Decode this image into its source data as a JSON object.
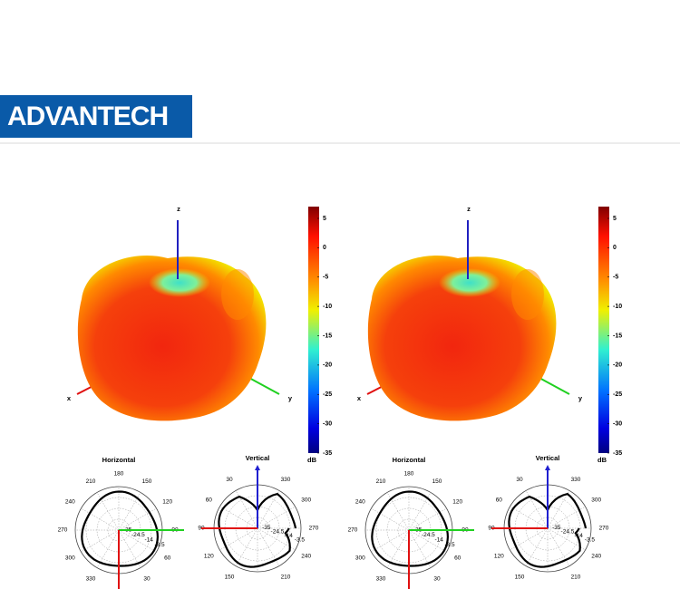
{
  "header": {
    "logo": "ADVANTECH"
  },
  "panels": [
    {
      "axes3d": {
        "x": "x",
        "y": "y",
        "z": "z"
      },
      "colorbar": {
        "ticks": [
          5,
          0,
          -5,
          -10,
          -15,
          -20,
          -25,
          -30,
          -35
        ],
        "unit": "dB"
      },
      "horizontal": {
        "title": "Horizontal",
        "angles": [
          180,
          210,
          150,
          240,
          120,
          270,
          90,
          300,
          60,
          330,
          30
        ],
        "rings": [
          -35,
          -24.5,
          -14,
          -3.5
        ]
      },
      "vertical": {
        "title": "Vertical",
        "angles": [
          30,
          330,
          60,
          300,
          90,
          270,
          120,
          240,
          150,
          210
        ],
        "rings": [
          -35,
          -24.5,
          -14,
          -3.5
        ]
      }
    },
    {
      "axes3d": {
        "x": "x",
        "y": "y",
        "z": "z"
      },
      "colorbar": {
        "ticks": [
          5,
          0,
          -5,
          -10,
          -15,
          -20,
          -25,
          -30,
          -35
        ],
        "unit": "dB"
      },
      "horizontal": {
        "title": "Horizontal",
        "angles": [
          180,
          210,
          150,
          240,
          120,
          270,
          90,
          300,
          60,
          330,
          30
        ],
        "rings": [
          -35,
          -24.5,
          -14,
          -3.5
        ]
      },
      "vertical": {
        "title": "Vertical",
        "angles": [
          30,
          330,
          60,
          300,
          90,
          270,
          120,
          240,
          150,
          210
        ],
        "rings": [
          -35,
          -24.5,
          -14,
          -3.5
        ]
      }
    }
  ]
}
